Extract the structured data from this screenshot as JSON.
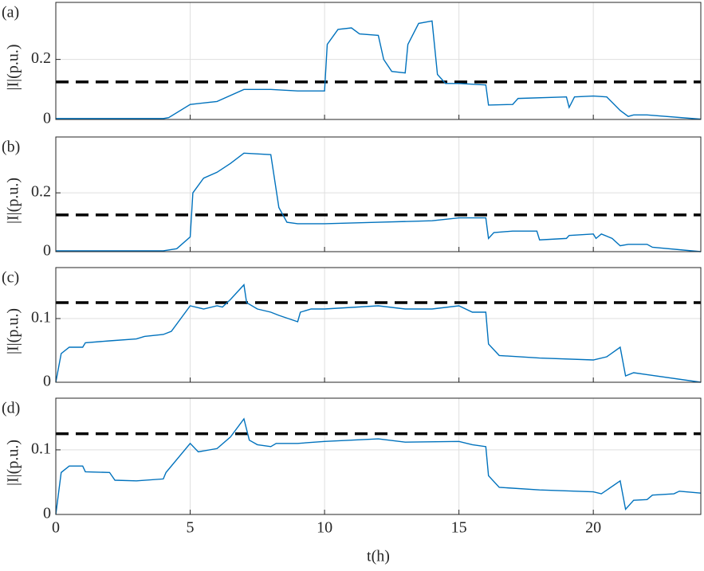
{
  "chart_data": [
    {
      "type": "line",
      "label": "(a)",
      "ylabel": "|I|(p.u.)",
      "color": "#0072bd",
      "threshold": 0.125,
      "threshold_color": "#000000",
      "x": [
        0,
        4,
        4.2,
        5,
        6,
        7,
        8,
        9,
        10,
        10.1,
        10.5,
        11,
        11.3,
        12,
        12.2,
        12.5,
        13,
        13.1,
        13.5,
        14,
        14.2,
        14.5,
        15,
        16,
        16.1,
        17,
        17.2,
        19,
        19.1,
        19.3,
        20,
        20.5,
        21,
        21.3,
        21.5,
        22,
        24
      ],
      "values": [
        0.003,
        0.003,
        0.006,
        0.05,
        0.06,
        0.1,
        0.1,
        0.095,
        0.095,
        0.25,
        0.3,
        0.305,
        0.285,
        0.28,
        0.2,
        0.16,
        0.155,
        0.25,
        0.32,
        0.328,
        0.15,
        0.12,
        0.12,
        0.115,
        0.048,
        0.05,
        0.07,
        0.075,
        0.04,
        0.075,
        0.078,
        0.075,
        0.03,
        0.01,
        0.015,
        0.015,
        0.001
      ],
      "xlim": [
        0,
        24
      ],
      "ylim": [
        0,
        0.39
      ],
      "xticks": [
        0,
        5,
        10,
        15,
        20
      ],
      "yticks": [
        0,
        0.2
      ],
      "grid": true
    },
    {
      "type": "line",
      "label": "(b)",
      "ylabel": "|I|(p.u.)",
      "color": "#0072bd",
      "threshold": 0.125,
      "threshold_color": "#000000",
      "x": [
        0,
        4,
        4.5,
        5,
        5.1,
        5.5,
        6,
        6.5,
        7,
        8,
        8.3,
        8.6,
        9,
        10,
        12,
        14,
        15,
        16,
        16.1,
        16.3,
        17,
        17.9,
        18,
        19,
        19.1,
        20,
        20.1,
        20.3,
        20.7,
        21,
        21.3,
        22,
        22.2,
        24
      ],
      "values": [
        0.003,
        0.003,
        0.01,
        0.05,
        0.2,
        0.25,
        0.27,
        0.3,
        0.335,
        0.33,
        0.15,
        0.1,
        0.095,
        0.095,
        0.1,
        0.105,
        0.115,
        0.115,
        0.045,
        0.065,
        0.07,
        0.07,
        0.04,
        0.045,
        0.055,
        0.06,
        0.045,
        0.06,
        0.045,
        0.02,
        0.025,
        0.025,
        0.015,
        0
      ],
      "xlim": [
        0,
        24
      ],
      "ylim": [
        0,
        0.39
      ],
      "xticks": [
        0,
        5,
        10,
        15,
        20
      ],
      "yticks": [
        0,
        0.2
      ],
      "grid": true
    },
    {
      "type": "line",
      "label": "(c)",
      "ylabel": "|I|(p.u.)",
      "color": "#0072bd",
      "threshold": 0.125,
      "threshold_color": "#000000",
      "x": [
        0,
        0.2,
        0.5,
        1,
        1.1,
        2,
        3,
        3.3,
        4,
        4.3,
        5,
        5.5,
        6,
        6.2,
        6.5,
        7,
        7.1,
        7.5,
        8,
        8.3,
        9,
        9.1,
        9.5,
        10,
        12,
        13,
        14,
        15,
        15.5,
        16,
        16.1,
        16.5,
        18,
        20,
        20.5,
        21,
        21.2,
        21.5,
        22,
        24
      ],
      "values": [
        0,
        0.045,
        0.055,
        0.055,
        0.062,
        0.065,
        0.068,
        0.072,
        0.075,
        0.08,
        0.12,
        0.115,
        0.12,
        0.118,
        0.13,
        0.153,
        0.125,
        0.115,
        0.11,
        0.105,
        0.095,
        0.11,
        0.115,
        0.115,
        0.12,
        0.115,
        0.115,
        0.12,
        0.11,
        0.11,
        0.06,
        0.042,
        0.038,
        0.035,
        0.04,
        0.055,
        0.01,
        0.015,
        0.012,
        0
      ],
      "xlim": [
        0,
        24
      ],
      "ylim": [
        0,
        0.18
      ],
      "xticks": [
        0,
        5,
        10,
        15,
        20
      ],
      "yticks": [
        0,
        0.1
      ],
      "grid": true
    },
    {
      "type": "line",
      "label": "(d)",
      "ylabel": "|I|(p.u.)",
      "xlabel": "t(h)",
      "color": "#0072bd",
      "threshold": 0.125,
      "threshold_color": "#000000",
      "x": [
        0,
        0.2,
        0.5,
        1,
        1.1,
        2,
        2.2,
        3,
        4,
        4.1,
        5,
        5.3,
        6,
        6.5,
        7,
        7.2,
        7.5,
        8,
        8.2,
        9,
        10,
        12,
        13,
        15,
        15.5,
        16,
        16.1,
        16.5,
        18,
        20,
        20.3,
        21,
        21.2,
        21.5,
        22,
        22.2,
        23,
        23.2,
        24
      ],
      "values": [
        0,
        0.065,
        0.075,
        0.075,
        0.066,
        0.065,
        0.053,
        0.052,
        0.055,
        0.065,
        0.11,
        0.097,
        0.102,
        0.12,
        0.148,
        0.115,
        0.108,
        0.105,
        0.11,
        0.11,
        0.113,
        0.117,
        0.112,
        0.113,
        0.108,
        0.105,
        0.06,
        0.042,
        0.038,
        0.035,
        0.032,
        0.052,
        0.008,
        0.022,
        0.023,
        0.03,
        0.032,
        0.036,
        0.033
      ],
      "xlim": [
        0,
        24
      ],
      "ylim": [
        0,
        0.18
      ],
      "xticks": [
        0,
        5,
        10,
        15,
        20
      ],
      "yticks": [
        0,
        0.1
      ],
      "grid": true
    }
  ]
}
